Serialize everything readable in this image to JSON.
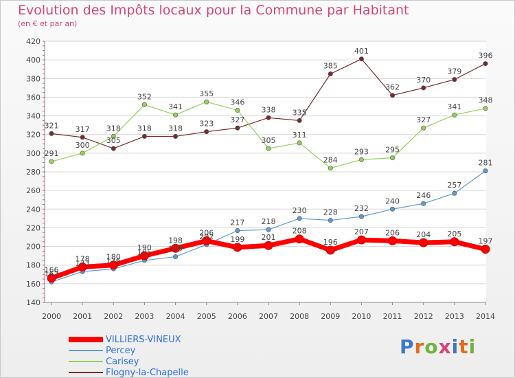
{
  "title": "Evolution des Impôts locaux pour la Commune par Habitant",
  "subtitle": "(en € et par an)",
  "logo_text": "Proxiti",
  "chart_data": {
    "type": "line",
    "title": "Evolution des Impôts locaux pour la Commune par Habitant",
    "subtitle": "(en € et par an)",
    "x": [
      "2000",
      "2001",
      "2002",
      "2003",
      "2004",
      "2005",
      "2006",
      "2007",
      "2008",
      "2009",
      "2010",
      "2011",
      "2012",
      "2013",
      "2014"
    ],
    "ylim": [
      140,
      420
    ],
    "yticks": [
      140,
      160,
      180,
      200,
      220,
      240,
      260,
      280,
      300,
      320,
      340,
      360,
      380,
      400,
      420
    ],
    "grid": true,
    "legend": "bottom-left",
    "series": [
      {
        "name": "VILLIERS-VINEUX",
        "color": "#ff0000",
        "values": [
          166,
          178,
          180,
          190,
          198,
          206,
          199,
          201,
          208,
          196,
          207,
          206,
          204,
          205,
          197
        ]
      },
      {
        "name": "Percey",
        "color": "#5b9bd5",
        "values": [
          162,
          173,
          176,
          185,
          189,
          202,
          217,
          218,
          230,
          228,
          232,
          240,
          246,
          257,
          281
        ]
      },
      {
        "name": "Carisey",
        "color": "#8fd25a",
        "values": [
          291,
          300,
          318,
          352,
          341,
          355,
          346,
          305,
          311,
          284,
          293,
          295,
          327,
          341,
          348
        ]
      },
      {
        "name": "Flogny-la-Chapelle",
        "color": "#7b2a2a",
        "values": [
          321,
          317,
          305,
          318,
          318,
          323,
          327,
          338,
          335,
          385,
          401,
          362,
          370,
          379,
          396
        ]
      }
    ]
  }
}
